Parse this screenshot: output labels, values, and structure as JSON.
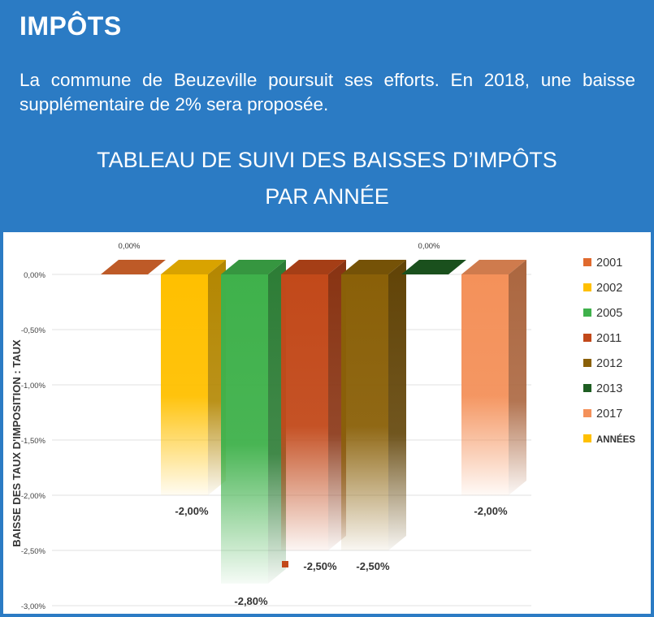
{
  "header": {
    "title": "IMPÔTS",
    "intro": "La commune de Beuzeville poursuit ses efforts. En 2018, une baisse supplémentaire de 2% sera proposée."
  },
  "chart_title": {
    "line1": "TABLEAU DE SUIVI DES BAISSES D’IMPÔTS",
    "line2": "PAR ANNÉE"
  },
  "chart_data": {
    "type": "bar",
    "ylabel": "BAISSE DES TAUX D'IMPOSITION : TAUX",
    "ylim": [
      -0.03,
      0
    ],
    "yticks": [
      "0,00%",
      "-0,50%",
      "-1,00%",
      "-1,50%",
      "-2,00%",
      "-2,50%",
      "-3,00%"
    ],
    "legend_position": "right",
    "series": [
      {
        "name": "2001",
        "value": 0,
        "label": "0,00%",
        "color": "#e06a2e"
      },
      {
        "name": "2002",
        "value": -0.02,
        "label": "-2,00%",
        "color": "#ffc000"
      },
      {
        "name": "2005",
        "value": -0.028,
        "label": "-2,80%",
        "color": "#3fb14b"
      },
      {
        "name": "2011",
        "value": -0.025,
        "label": "-2,50%",
        "color": "#c2491a"
      },
      {
        "name": "2012",
        "value": -0.025,
        "label": "-2,50%",
        "color": "#8a6008"
      },
      {
        "name": "2013",
        "value": 0,
        "label": "0,00%",
        "color": "#1e5e22"
      },
      {
        "name": "2017",
        "value": -0.02,
        "label": "-2,00%",
        "color": "#f4915a"
      }
    ],
    "extra_legend": {
      "name": "ANNÉES",
      "color": "#ffc000"
    }
  }
}
